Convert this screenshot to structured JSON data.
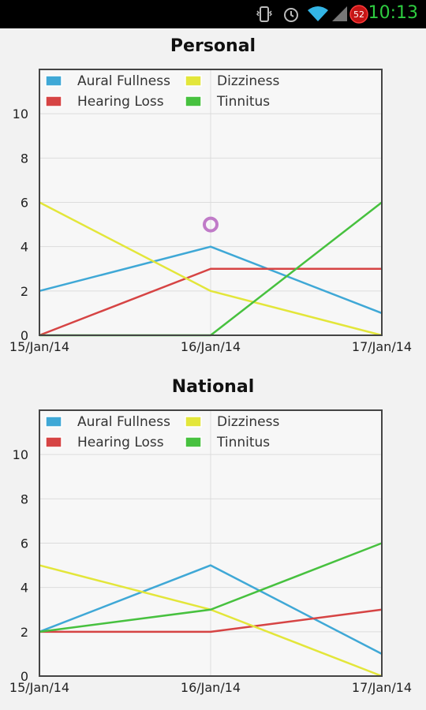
{
  "status_bar": {
    "time": "10:13",
    "battery_level": "52",
    "icons": [
      "vibrate-icon",
      "alarm-icon",
      "wifi-icon",
      "signal-icon",
      "battery-icon"
    ]
  },
  "colors": {
    "Aural Fullness": "#3fa8d6",
    "Hearing Loss": "#d64444",
    "Dizziness": "#e3e63a",
    "Tinnitus": "#47c13f",
    "marker": "#c07bc8"
  },
  "chart_data": [
    {
      "type": "line",
      "title": "Personal",
      "categories": [
        "15/Jan/14",
        "16/Jan/14",
        "17/Jan/14"
      ],
      "series": [
        {
          "name": "Aural Fullness",
          "values": [
            2,
            4,
            1
          ]
        },
        {
          "name": "Hearing Loss",
          "values": [
            0,
            3,
            3
          ]
        },
        {
          "name": "Dizziness",
          "values": [
            6,
            2,
            0
          ]
        },
        {
          "name": "Tinnitus",
          "values": [
            0,
            0,
            6
          ]
        }
      ],
      "marker": {
        "x": "16/Jan/14",
        "y": 5
      },
      "ylim": [
        0,
        12
      ],
      "yticks": [
        0,
        2,
        4,
        6,
        8,
        10
      ],
      "grid": true,
      "legend": "top-left"
    },
    {
      "type": "line",
      "title": "National",
      "categories": [
        "15/Jan/14",
        "16/Jan/14",
        "17/Jan/14"
      ],
      "series": [
        {
          "name": "Aural Fullness",
          "values": [
            2,
            5,
            1
          ]
        },
        {
          "name": "Hearing Loss",
          "values": [
            2,
            2,
            3
          ]
        },
        {
          "name": "Dizziness",
          "values": [
            5,
            3,
            0
          ]
        },
        {
          "name": "Tinnitus",
          "values": [
            2,
            3,
            6
          ]
        }
      ],
      "ylim": [
        0,
        12
      ],
      "yticks": [
        0,
        2,
        4,
        6,
        8,
        10
      ],
      "grid": true,
      "legend": "top-left"
    }
  ]
}
